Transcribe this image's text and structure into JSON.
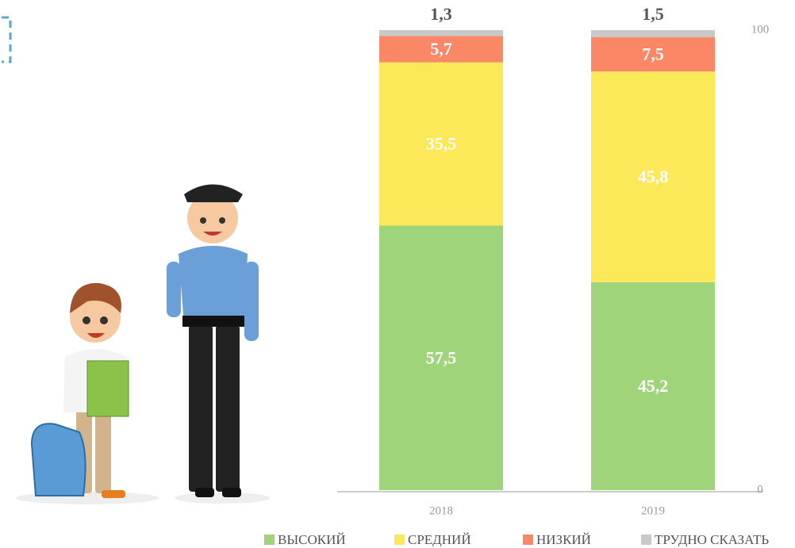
{
  "chart_data": {
    "type": "bar",
    "stacked": true,
    "categories": [
      "2018",
      "2019"
    ],
    "series": [
      {
        "name": "ВЫСОКИЙ",
        "color": "#9fd47a",
        "values": [
          57.5,
          45.2
        ],
        "value_labels": [
          "57,5",
          "45,2"
        ]
      },
      {
        "name": "СРЕДНИЙ",
        "color": "#fce95a",
        "values": [
          35.5,
          45.8
        ],
        "value_labels": [
          "35,5",
          "45,8"
        ]
      },
      {
        "name": "НИЗКИЙ",
        "color": "#fa8766",
        "values": [
          5.7,
          7.5
        ],
        "value_labels": [
          "5,7",
          "7,5"
        ]
      },
      {
        "name": "ТРУДНО СКАЗАТЬ",
        "color": "#c9c9c9",
        "values": [
          1.3,
          1.5
        ],
        "value_labels": [
          "1,3",
          "1,5"
        ]
      }
    ],
    "ylim": [
      0,
      100
    ],
    "yticks": [
      0,
      100
    ],
    "legend": "bottom"
  }
}
